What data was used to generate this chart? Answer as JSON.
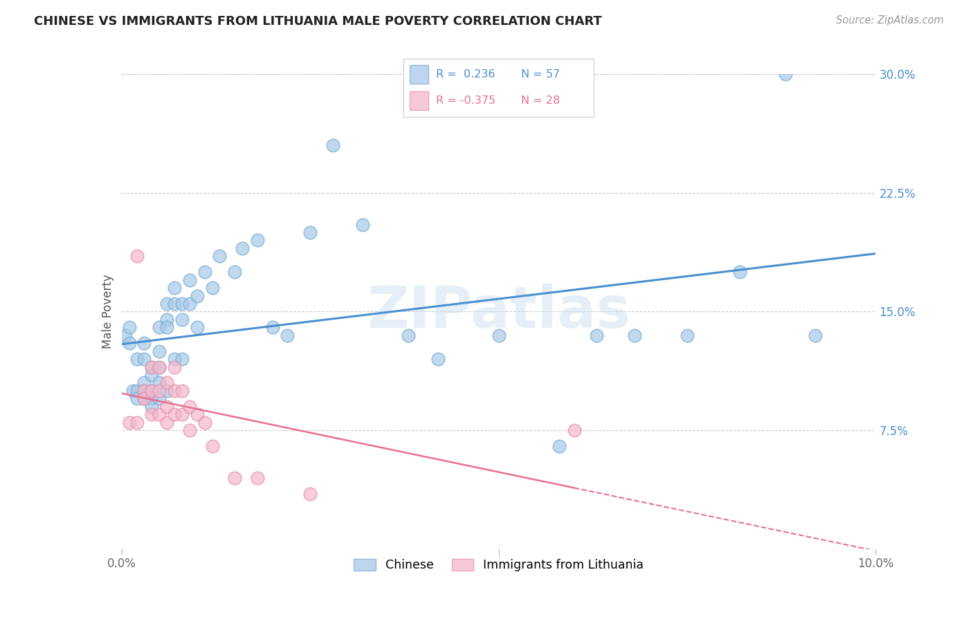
{
  "title": "CHINESE VS IMMIGRANTS FROM LITHUANIA MALE POVERTY CORRELATION CHART",
  "source": "Source: ZipAtlas.com",
  "ylabel": "Male Poverty",
  "xlim": [
    0.0,
    0.1
  ],
  "ylim": [
    0.0,
    0.3
  ],
  "ytick_labels_right": [
    "30.0%",
    "22.5%",
    "15.0%",
    "7.5%"
  ],
  "yticks_right": [
    0.3,
    0.225,
    0.15,
    0.075
  ],
  "blue_color": "#a8c8e8",
  "blue_edge": "#7aafd4",
  "pink_color": "#f4b8cc",
  "pink_edge": "#e890aa",
  "line_blue": "#4a90d0",
  "line_pink": "#e87090",
  "watermark": "ZIPatlas",
  "chinese_x": [
    0.0005,
    0.001,
    0.001,
    0.0015,
    0.002,
    0.002,
    0.002,
    0.003,
    0.003,
    0.003,
    0.003,
    0.003,
    0.004,
    0.004,
    0.004,
    0.004,
    0.004,
    0.005,
    0.005,
    0.005,
    0.005,
    0.005,
    0.006,
    0.006,
    0.006,
    0.006,
    0.007,
    0.007,
    0.007,
    0.008,
    0.008,
    0.008,
    0.009,
    0.009,
    0.01,
    0.01,
    0.011,
    0.012,
    0.013,
    0.015,
    0.016,
    0.018,
    0.02,
    0.022,
    0.025,
    0.028,
    0.032,
    0.038,
    0.042,
    0.05,
    0.058,
    0.063,
    0.068,
    0.075,
    0.082,
    0.088,
    0.092
  ],
  "chinese_y": [
    0.135,
    0.14,
    0.13,
    0.1,
    0.12,
    0.1,
    0.095,
    0.13,
    0.12,
    0.105,
    0.1,
    0.095,
    0.115,
    0.11,
    0.1,
    0.095,
    0.09,
    0.14,
    0.125,
    0.115,
    0.105,
    0.095,
    0.155,
    0.145,
    0.14,
    0.1,
    0.165,
    0.155,
    0.12,
    0.155,
    0.145,
    0.12,
    0.17,
    0.155,
    0.16,
    0.14,
    0.175,
    0.165,
    0.185,
    0.175,
    0.19,
    0.195,
    0.14,
    0.135,
    0.2,
    0.255,
    0.205,
    0.135,
    0.12,
    0.135,
    0.065,
    0.135,
    0.135,
    0.135,
    0.175,
    0.3,
    0.135
  ],
  "lith_x": [
    0.001,
    0.002,
    0.002,
    0.003,
    0.003,
    0.004,
    0.004,
    0.004,
    0.005,
    0.005,
    0.005,
    0.006,
    0.006,
    0.006,
    0.007,
    0.007,
    0.007,
    0.008,
    0.008,
    0.009,
    0.009,
    0.01,
    0.011,
    0.012,
    0.015,
    0.018,
    0.025,
    0.06
  ],
  "lith_y": [
    0.08,
    0.185,
    0.08,
    0.1,
    0.095,
    0.115,
    0.1,
    0.085,
    0.115,
    0.1,
    0.085,
    0.105,
    0.09,
    0.08,
    0.115,
    0.1,
    0.085,
    0.1,
    0.085,
    0.09,
    0.075,
    0.085,
    0.08,
    0.065,
    0.045,
    0.045,
    0.035,
    0.075
  ]
}
